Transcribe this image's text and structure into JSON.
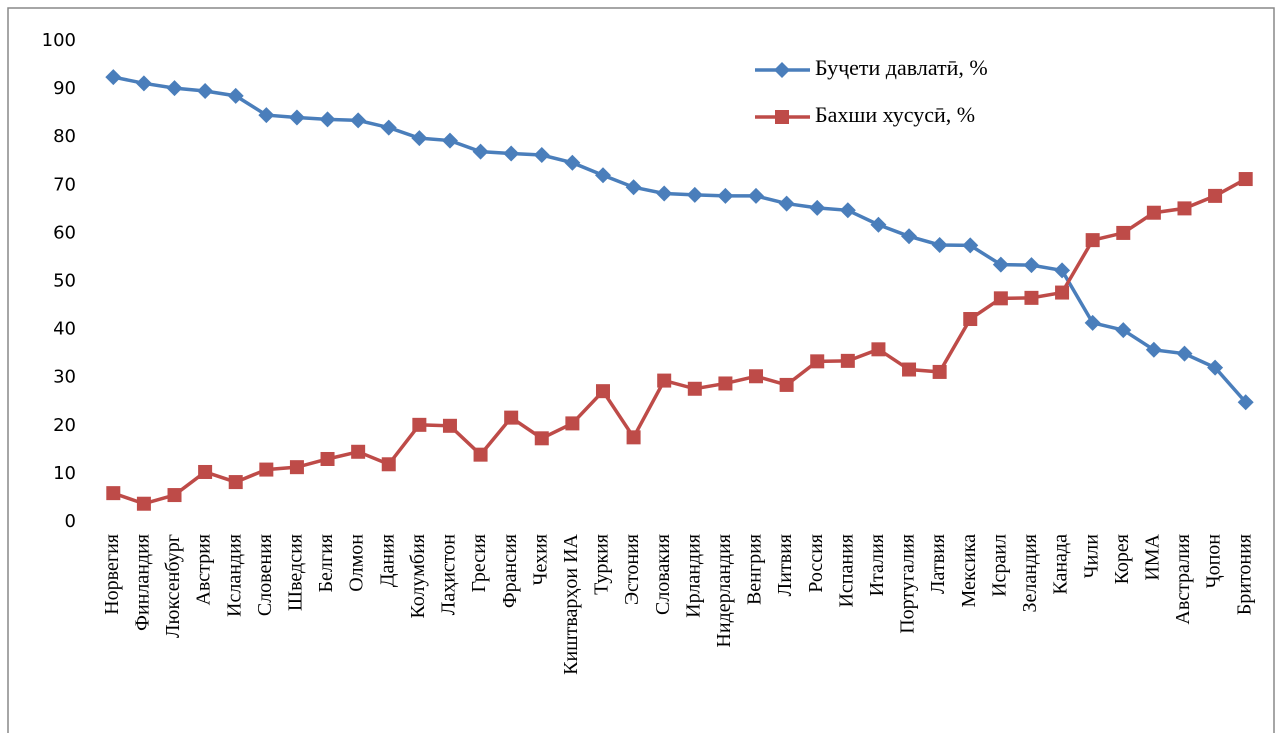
{
  "chart_data": {
    "type": "line",
    "categories": [
      "Норвегия",
      "Финландия",
      "Люксенбург",
      "Австрия",
      "Исландия",
      "Словения",
      "Шведсия",
      "Белгия",
      "Олмон",
      "Дания",
      "Колумбия",
      "Лаҳистон",
      "Гресия",
      "Франсия",
      "Чехия",
      "Киштварҳои ИА",
      "Туркия",
      "Эстония",
      "Словакия",
      "Ирландия",
      "Нидерландия",
      "Венгрия",
      "Литвия",
      "Россия",
      "Испания",
      "Италия",
      "Португалия",
      "Латвия",
      "Мексика",
      "Исраил",
      "Зеландия",
      "Канада",
      "Чили",
      "Корея",
      "ИМА",
      "Австралия",
      "Ҷопон",
      "Бритония"
    ],
    "series": [
      {
        "name": "Буҷети давлатӣ, %",
        "color": "#4a7ebb",
        "marker": "diamond",
        "values": [
          92.5,
          91.2,
          90.2,
          89.6,
          88.6,
          84.6,
          84.1,
          83.7,
          83.5,
          82.0,
          79.8,
          79.3,
          77.0,
          76.6,
          76.3,
          74.7,
          72.1,
          69.6,
          68.3,
          68.0,
          67.8,
          67.8,
          66.2,
          65.3,
          64.8,
          61.8,
          59.4,
          57.6,
          57.5,
          53.5,
          53.4,
          52.3,
          41.4,
          39.9,
          35.8,
          35.0,
          32.1,
          24.9
        ]
      },
      {
        "name": "Бахши хусусӣ, %",
        "color": "#be4b48",
        "marker": "square",
        "values": [
          6.0,
          3.8,
          5.6,
          10.4,
          8.3,
          10.9,
          11.4,
          13.1,
          14.6,
          12.0,
          20.2,
          20.0,
          14.0,
          21.7,
          17.4,
          20.5,
          27.2,
          17.6,
          29.4,
          27.7,
          28.8,
          30.3,
          28.5,
          33.4,
          33.5,
          35.9,
          31.7,
          31.2,
          42.2,
          46.5,
          46.6,
          47.7,
          58.6,
          60.1,
          64.3,
          65.2,
          67.8,
          71.3
        ]
      }
    ],
    "ylim": [
      0,
      100
    ],
    "yticks": [
      0,
      10,
      20,
      30,
      40,
      50,
      60,
      70,
      80,
      90,
      100
    ],
    "grid": false,
    "legend": "top-right"
  }
}
